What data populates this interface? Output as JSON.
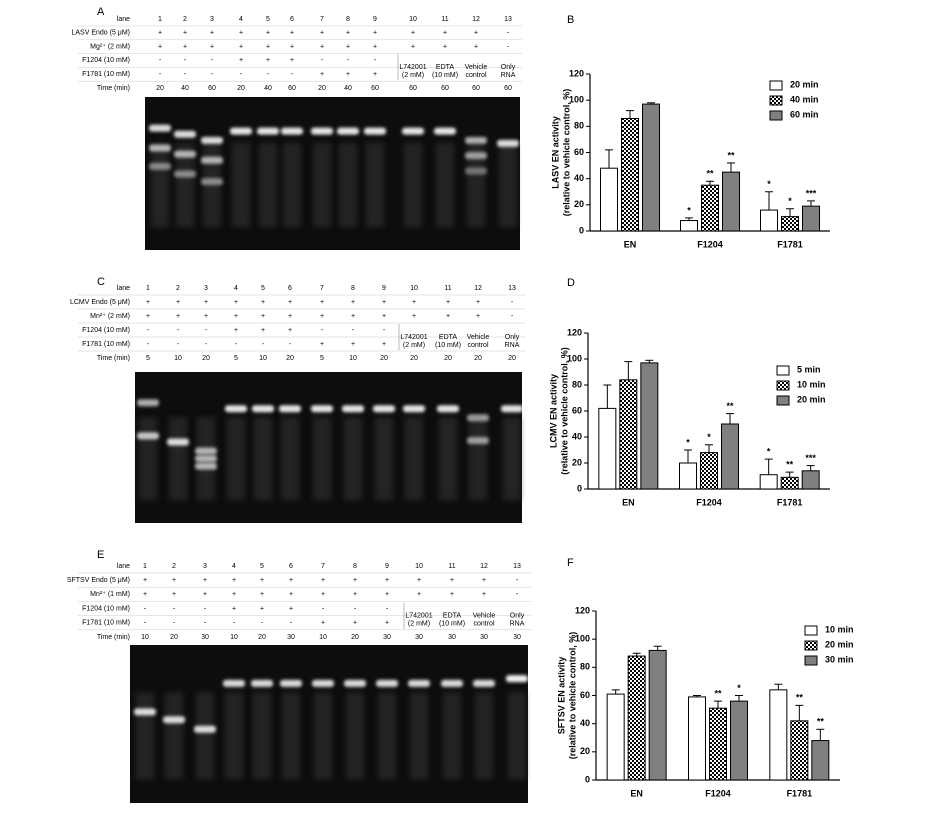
{
  "gels": [
    {
      "label": "A",
      "rows": [
        {
          "name": "lane",
          "cells": [
            1,
            2,
            3,
            4,
            5,
            6,
            7,
            8,
            9,
            10,
            11,
            12,
            13
          ]
        },
        {
          "name": "LASV Endo (5 μM)",
          "cells": [
            "+",
            "+",
            "+",
            "+",
            "+",
            "+",
            "+",
            "+",
            "+",
            "+",
            "+",
            "+",
            "-"
          ]
        },
        {
          "name": "Mg²⁺ (2 mM)",
          "cells": [
            "+",
            "+",
            "+",
            "+",
            "+",
            "+",
            "+",
            "+",
            "+",
            "+",
            "+",
            "+",
            "-"
          ]
        },
        {
          "name": "F1204 (10 mM)",
          "cells": [
            "-",
            "-",
            "-",
            "+",
            "+",
            "+",
            "-",
            "-",
            "-"
          ]
        },
        {
          "name": "F1781 (10 mM)",
          "cells": [
            "-",
            "-",
            "-",
            "-",
            "-",
            "-",
            "+",
            "+",
            "+"
          ]
        },
        {
          "name": "Time (min)",
          "cells": [
            20,
            40,
            60,
            20,
            40,
            60,
            20,
            40,
            60,
            60,
            60,
            60,
            60
          ]
        }
      ],
      "notes": [
        [
          "L742001",
          "(2 mM)"
        ],
        [
          "EDTA",
          "(10 mM)"
        ],
        [
          "Vehicle",
          "control"
        ],
        [
          "Only",
          "RNA"
        ]
      ]
    },
    {
      "label": "C",
      "rows": [
        {
          "name": "lane",
          "cells": [
            1,
            2,
            3,
            4,
            5,
            6,
            7,
            8,
            9,
            10,
            11,
            12,
            13
          ]
        },
        {
          "name": "LCMV Endo (5 μM)",
          "cells": [
            "+",
            "+",
            "+",
            "+",
            "+",
            "+",
            "+",
            "+",
            "+",
            "+",
            "+",
            "+",
            "-"
          ]
        },
        {
          "name": "Mn²⁺ (2 mM)",
          "cells": [
            "+",
            "+",
            "+",
            "+",
            "+",
            "+",
            "+",
            "+",
            "+",
            "+",
            "+",
            "+",
            "-"
          ]
        },
        {
          "name": "F1204 (10 mM)",
          "cells": [
            "-",
            "-",
            "-",
            "+",
            "+",
            "+",
            "-",
            "-",
            "-"
          ]
        },
        {
          "name": "F1781 (10 mM)",
          "cells": [
            "-",
            "-",
            "-",
            "-",
            "-",
            "-",
            "+",
            "+",
            "+"
          ]
        },
        {
          "name": "Time (min)",
          "cells": [
            5,
            10,
            20,
            5,
            10,
            20,
            5,
            10,
            20,
            20,
            20,
            20,
            20
          ]
        }
      ],
      "notes": [
        [
          "L742001",
          "(2 mM)"
        ],
        [
          "EDTA",
          "(10 mM)"
        ],
        [
          "Vehicle",
          "control"
        ],
        [
          "Only",
          "RNA"
        ]
      ]
    },
    {
      "label": "E",
      "rows": [
        {
          "name": "lane",
          "cells": [
            1,
            2,
            3,
            4,
            5,
            6,
            7,
            8,
            9,
            10,
            11,
            12,
            13
          ]
        },
        {
          "name": "SFTSV Endo (5 μM)",
          "cells": [
            "+",
            "+",
            "+",
            "+",
            "+",
            "+",
            "+",
            "+",
            "+",
            "+",
            "+",
            "+",
            "-"
          ]
        },
        {
          "name": "Mn²⁺ (1 mM)",
          "cells": [
            "+",
            "+",
            "+",
            "+",
            "+",
            "+",
            "+",
            "+",
            "+",
            "+",
            "+",
            "+",
            "-"
          ]
        },
        {
          "name": "F1204 (10 mM)",
          "cells": [
            "-",
            "-",
            "-",
            "+",
            "+",
            "+",
            "-",
            "-",
            "-"
          ]
        },
        {
          "name": "F1781 (10 mM)",
          "cells": [
            "-",
            "-",
            "-",
            "-",
            "-",
            "-",
            "+",
            "+",
            "+"
          ]
        },
        {
          "name": "Time (min)",
          "cells": [
            10,
            20,
            30,
            10,
            20,
            30,
            10,
            20,
            30,
            30,
            30,
            30,
            30
          ]
        }
      ],
      "notes": [
        [
          "L742001",
          "(2 mM)"
        ],
        [
          "EDTA",
          "(10 mM)"
        ],
        [
          "Vehicle",
          "control"
        ],
        [
          "Only",
          "RNA"
        ]
      ]
    }
  ],
  "chart_data": [
    {
      "type": "bar",
      "panel": "B",
      "ylabel": [
        "LASV EN activity",
        "(relative to vehicle control, %)"
      ],
      "categories": [
        "EN",
        "F1204",
        "F1781"
      ],
      "ylim": [
        0,
        120
      ],
      "yticks": [
        0,
        20,
        40,
        60,
        80,
        100,
        120
      ],
      "series": [
        {
          "name": "20 min",
          "color": "#ffffff",
          "values": [
            48,
            8,
            16
          ],
          "errors": [
            14,
            2,
            14
          ],
          "significance": [
            null,
            "*",
            "*"
          ]
        },
        {
          "name": "40 min",
          "color": "#ffffff",
          "pattern": "checker",
          "values": [
            86,
            35,
            11
          ],
          "errors": [
            6,
            3,
            6
          ],
          "significance": [
            null,
            "**",
            "*"
          ]
        },
        {
          "name": "60 min",
          "color": "#808080",
          "values": [
            97,
            45,
            19
          ],
          "errors": [
            1,
            7,
            4
          ],
          "significance": [
            null,
            "**",
            "***"
          ]
        }
      ]
    },
    {
      "type": "bar",
      "panel": "D",
      "ylabel": [
        "LCMV EN activity",
        "(relative to vehicle control, %)"
      ],
      "categories": [
        "EN",
        "F1204",
        "F1781"
      ],
      "ylim": [
        0,
        120
      ],
      "yticks": [
        0,
        20,
        40,
        60,
        80,
        100,
        120
      ],
      "series": [
        {
          "name": "5 min",
          "color": "#ffffff",
          "values": [
            62,
            20,
            11
          ],
          "errors": [
            18,
            10,
            12
          ],
          "significance": [
            null,
            "*",
            "*"
          ]
        },
        {
          "name": "10 min",
          "color": "#ffffff",
          "pattern": "checker",
          "values": [
            84,
            28,
            9
          ],
          "errors": [
            14,
            6,
            4
          ],
          "significance": [
            null,
            "*",
            "**"
          ]
        },
        {
          "name": "20 min",
          "color": "#808080",
          "values": [
            97,
            50,
            14
          ],
          "errors": [
            2,
            8,
            4
          ],
          "significance": [
            null,
            "**",
            "***"
          ]
        }
      ]
    },
    {
      "type": "bar",
      "panel": "F",
      "ylabel": [
        "SFTSV EN activity",
        "(relative to vehicle control, %)"
      ],
      "categories": [
        "EN",
        "F1204",
        "F1781"
      ],
      "ylim": [
        0,
        120
      ],
      "yticks": [
        0,
        20,
        40,
        60,
        80,
        100,
        120
      ],
      "series": [
        {
          "name": "10 min",
          "color": "#ffffff",
          "values": [
            61,
            59,
            64
          ],
          "errors": [
            3,
            1,
            4
          ],
          "significance": [
            null,
            null,
            null
          ]
        },
        {
          "name": "20 min",
          "color": "#ffffff",
          "pattern": "checker",
          "values": [
            88,
            51,
            42
          ],
          "errors": [
            2,
            5,
            11
          ],
          "significance": [
            null,
            "**",
            "**"
          ]
        },
        {
          "name": "30 min",
          "color": "#808080",
          "values": [
            92,
            56,
            28
          ],
          "errors": [
            3,
            4,
            8
          ],
          "significance": [
            null,
            "*",
            "**"
          ]
        }
      ]
    }
  ]
}
